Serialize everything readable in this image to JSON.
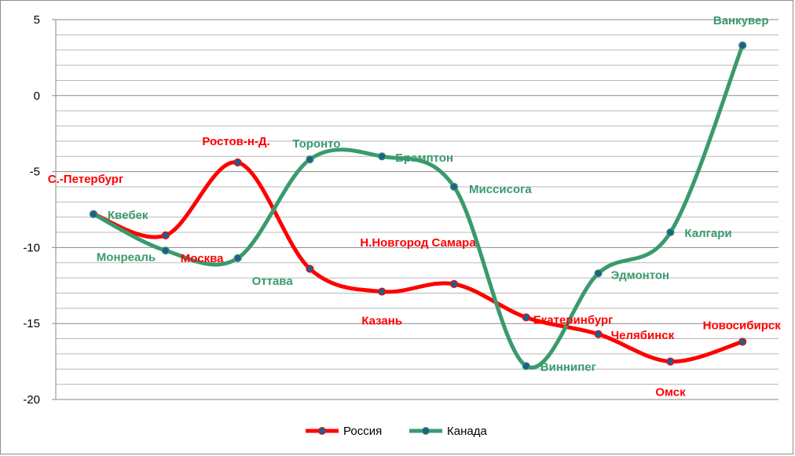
{
  "chart_data": {
    "type": "line",
    "smooth": true,
    "ylim": [
      -20,
      5
    ],
    "ytick_step": 5,
    "y_ticks": [
      "5",
      "0",
      "-5",
      "-10",
      "-15",
      "-20"
    ],
    "grid": "horizontal",
    "legend_position": "bottom",
    "series": [
      {
        "name": "Россия",
        "color": "#ff0000",
        "marker_color": "#1f5f8b",
        "values": [
          -7.8,
          -9.2,
          -4.4,
          -11.4,
          -12.9,
          -12.4,
          -14.6,
          -15.7,
          -17.5,
          -16.2
        ],
        "labels": [
          "С.-Петербург",
          "Москва",
          "Ростов-н-Д.",
          "",
          "Казань",
          "Н.Новгород Самара",
          "Екатеринбург",
          "Челябинск",
          "Омск",
          "Новосибирск"
        ]
      },
      {
        "name": "Канада",
        "color": "#3a9a6e",
        "marker_color": "#1f5f8b",
        "values": [
          -7.8,
          -10.2,
          -10.7,
          -4.2,
          -4.0,
          -6.0,
          -17.8,
          -11.7,
          -9.0,
          3.3
        ],
        "labels": [
          "Квебек",
          "Монреаль",
          "Оттава",
          "Торонто",
          "Брамптон",
          "Миссисога",
          "Виннипег",
          "Эдмонтон",
          "Калгари",
          "Ванкувер"
        ]
      }
    ]
  }
}
